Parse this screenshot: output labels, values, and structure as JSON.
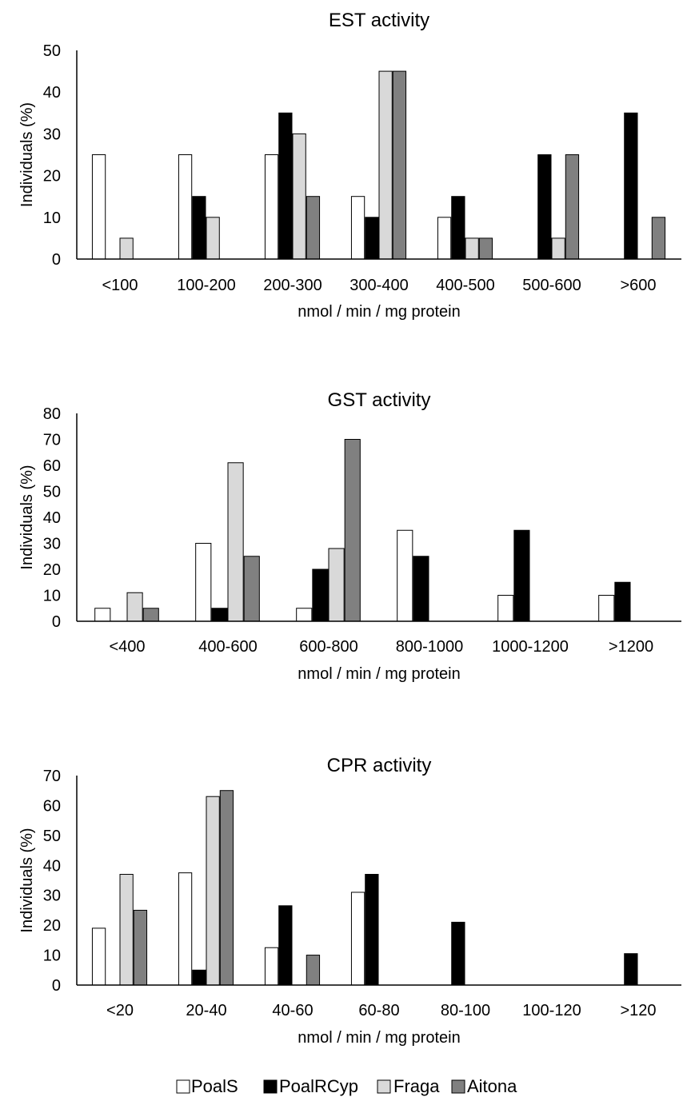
{
  "chart_data": [
    {
      "type": "bar",
      "title": "EST activity",
      "xlabel": "nmol / min / mg protein",
      "ylabel": "Individuals (%)",
      "ylim": [
        0,
        50
      ],
      "yticks": [
        0,
        10,
        20,
        30,
        40,
        50
      ],
      "grid": false,
      "categories": [
        "<100",
        "100-200",
        "200-300",
        "300-400",
        "400-500",
        "500-600",
        ">600"
      ],
      "series": [
        {
          "name": "PoalS",
          "color": "#ffffff",
          "values": [
            25,
            25,
            25,
            15,
            10,
            0,
            0
          ]
        },
        {
          "name": "PoalRCyp",
          "color": "#000000",
          "values": [
            0,
            15,
            35,
            10,
            15,
            25,
            35
          ]
        },
        {
          "name": "Fraga",
          "color": "#d9d9d9",
          "values": [
            5,
            10,
            30,
            45,
            5,
            5,
            0
          ]
        },
        {
          "name": "Aitona",
          "color": "#808080",
          "values": [
            0,
            0,
            15,
            45,
            5,
            25,
            10
          ]
        }
      ]
    },
    {
      "type": "bar",
      "title": "GST activity",
      "xlabel": "nmol / min / mg protein",
      "ylabel": "Individuals (%)",
      "ylim": [
        0,
        80
      ],
      "yticks": [
        0,
        10,
        20,
        30,
        40,
        50,
        60,
        70,
        80
      ],
      "grid": false,
      "categories": [
        "<400",
        "400-600",
        "600-800",
        "800-1000",
        "1000-1200",
        ">1200"
      ],
      "series": [
        {
          "name": "PoalS",
          "color": "#ffffff",
          "values": [
            5,
            30,
            5,
            35,
            10,
            10
          ]
        },
        {
          "name": "PoalRCyp",
          "color": "#000000",
          "values": [
            0,
            5,
            20,
            25,
            35,
            15
          ]
        },
        {
          "name": "Fraga",
          "color": "#d9d9d9",
          "values": [
            11,
            61,
            28,
            0,
            0,
            0
          ]
        },
        {
          "name": "Aitona",
          "color": "#808080",
          "values": [
            5,
            25,
            70,
            0,
            0,
            0
          ]
        }
      ]
    },
    {
      "type": "bar",
      "title": "CPR activity",
      "xlabel": "nmol / min / mg protein",
      "ylabel": "Individuals (%)",
      "ylim": [
        0,
        70
      ],
      "yticks": [
        0,
        10,
        20,
        30,
        40,
        50,
        60,
        70
      ],
      "grid": false,
      "categories": [
        "<20",
        "20-40",
        "40-60",
        "60-80",
        "80-100",
        "100-120",
        ">120"
      ],
      "series": [
        {
          "name": "PoalS",
          "color": "#ffffff",
          "values": [
            19,
            37.5,
            12.5,
            31,
            0,
            0,
            0
          ]
        },
        {
          "name": "PoalRCyp",
          "color": "#000000",
          "values": [
            0,
            5,
            26.5,
            37,
            21,
            0,
            10.5
          ]
        },
        {
          "name": "Fraga",
          "color": "#d9d9d9",
          "values": [
            37,
            63,
            0,
            0,
            0,
            0,
            0
          ]
        },
        {
          "name": "Aitona",
          "color": "#808080",
          "values": [
            25,
            65,
            10,
            0,
            0,
            0,
            0
          ]
        }
      ]
    }
  ],
  "legend": {
    "placement": "bottom-center",
    "items": [
      {
        "label": "PoalS",
        "color": "#ffffff"
      },
      {
        "label": "PoalRCyp",
        "color": "#000000"
      },
      {
        "label": "Fraga",
        "color": "#d9d9d9"
      },
      {
        "label": "Aitona",
        "color": "#808080"
      }
    ]
  }
}
